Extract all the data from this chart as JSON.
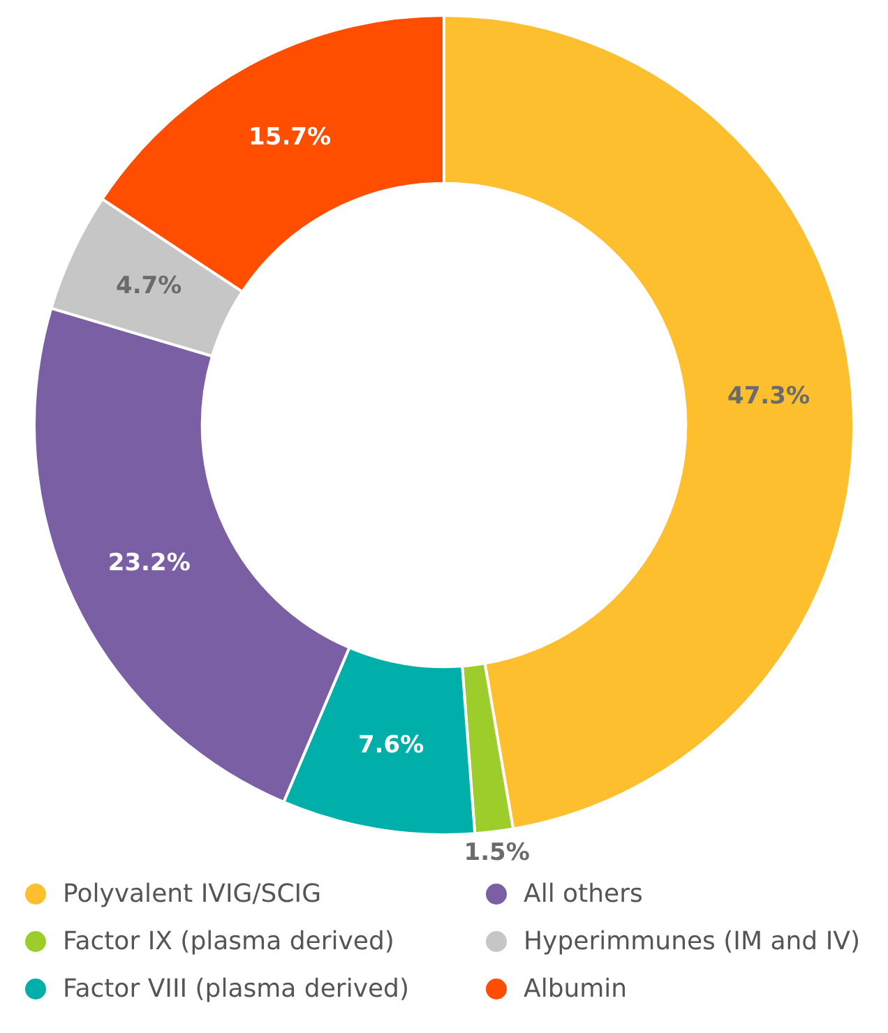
{
  "chart_data": {
    "type": "donut",
    "categories": [
      "Polyvalent IVIG/SCIG",
      "Factor IX (plasma derived)",
      "Factor VIII (plasma derived)",
      "All others",
      "Hyperimmunes (IM and IV)",
      "Albumin"
    ],
    "values": [
      47.3,
      1.5,
      7.6,
      23.2,
      4.7,
      15.7
    ],
    "colors": [
      "#fdbf2d",
      "#9ccd2a",
      "#00afa9",
      "#7b5fa5",
      "#c6c6c6",
      "#ff4e00"
    ],
    "value_labels": [
      "47.3%",
      "1.5%",
      "7.6%",
      "23.2%",
      "4.7%",
      "15.7%"
    ],
    "legend": "bottom"
  }
}
